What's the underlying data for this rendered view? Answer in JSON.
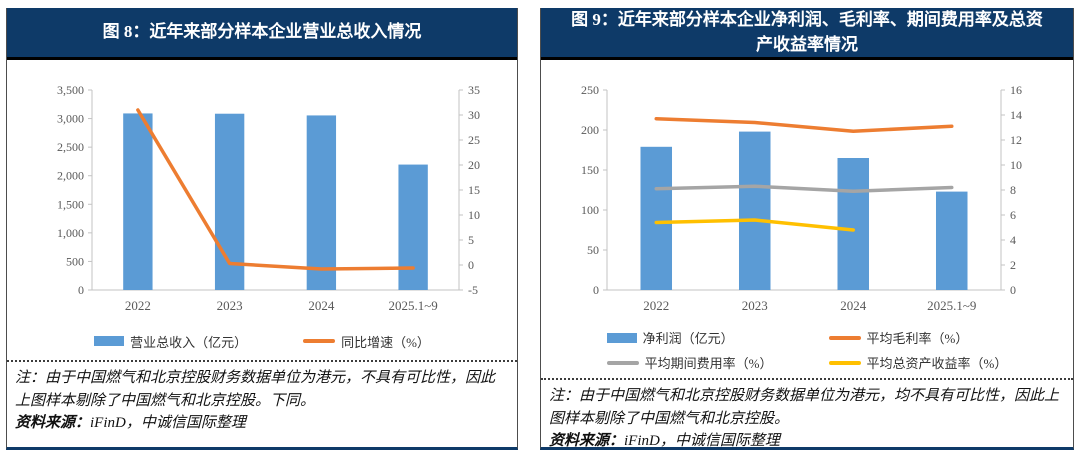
{
  "panels": [
    {
      "id": "figure-8",
      "title": "图 8：近年来部分样本企业营业总收入情况",
      "note": "注：由于中国燃气和北京控股财务数据单位为港元，不具有可比性，因此上图样本剔除了中国燃气和北京控股。下同。",
      "source_prefix": "资料来源：",
      "source_text": "iFinD，中诚信国际整理"
    },
    {
      "id": "figure-9",
      "title": "图 9：近年来部分样本企业净利润、毛利率、期间费用率及总资产收益率情况",
      "note": "注：由于中国燃气和北京控股财务数据单位为港元，均不具有可比性，因此上图样本剔除了中国燃气和北京控股。",
      "source_prefix": "资料来源：",
      "source_text": "iFinD，中诚信国际整理"
    }
  ],
  "chart_data": [
    {
      "type": "bar+line",
      "title": "近年来部分样本企业营业总收入情况",
      "categories": [
        "2022",
        "2023",
        "2024",
        "2025.1~9"
      ],
      "left_axis": {
        "min": 0,
        "max": 3500,
        "step": 500,
        "format": "thousands"
      },
      "right_axis": {
        "min": -5,
        "max": 35,
        "step": 5,
        "format": "plain"
      },
      "grid": false,
      "legend_position": "bottom",
      "series": [
        {
          "name": "营业总收入（亿元）",
          "type": "bar",
          "axis": "left",
          "color": "#5B9BD5",
          "values": [
            3090,
            3085,
            3055,
            2195
          ]
        },
        {
          "name": "同比增速（%）",
          "type": "line",
          "axis": "right",
          "color": "#ED7D31",
          "values": [
            31,
            0.3,
            -0.8,
            -0.6
          ]
        }
      ]
    },
    {
      "type": "bar+line",
      "title": "近年来部分样本企业净利润、毛利率、期间费用率及总资产收益率情况",
      "categories": [
        "2022",
        "2023",
        "2024",
        "2025.1~9"
      ],
      "left_axis": {
        "min": 0,
        "max": 250,
        "step": 50,
        "format": "plain"
      },
      "right_axis": {
        "min": 0,
        "max": 16,
        "step": 2,
        "format": "plain"
      },
      "grid": false,
      "legend_position": "bottom",
      "series": [
        {
          "name": "净利润（亿元）",
          "type": "bar",
          "axis": "left",
          "color": "#5B9BD5",
          "values": [
            179,
            198,
            165,
            123
          ]
        },
        {
          "name": "平均毛利率（%）",
          "type": "line",
          "axis": "right",
          "color": "#ED7D31",
          "values": [
            13.7,
            13.4,
            12.7,
            13.1
          ]
        },
        {
          "name": "平均期间费用率（%）",
          "type": "line",
          "axis": "right",
          "color": "#A5A5A5",
          "values": [
            8.1,
            8.3,
            7.9,
            8.2
          ]
        },
        {
          "name": "平均总资产收益率（%）",
          "type": "line",
          "axis": "right",
          "color": "#FFC000",
          "values": [
            5.4,
            5.6,
            4.8,
            null
          ]
        }
      ]
    }
  ],
  "colors": {
    "header_navy": "#0e3a68",
    "bar_blue": "#5B9BD5",
    "line_orange": "#ED7D31",
    "line_gray": "#A5A5A5",
    "line_yellow": "#FFC000",
    "axis_line": "#c3c3c3",
    "tick_label": "#595959"
  }
}
